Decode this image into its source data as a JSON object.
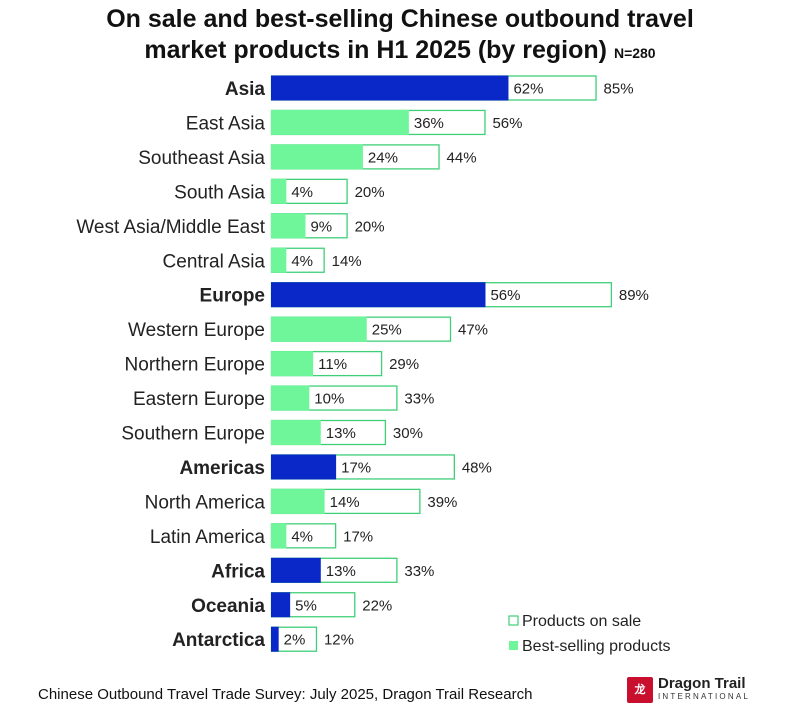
{
  "chart_data": {
    "type": "bar",
    "title_line1": "On sale and best-selling Chinese outbound travel",
    "title_line2": "market products in H1 2025 (by region)",
    "sample_note": "N=280",
    "series": [
      {
        "name": "Products on sale",
        "style": "outline"
      },
      {
        "name": "Best-selling products",
        "style": "filled"
      }
    ],
    "categories": [
      {
        "label": "Asia",
        "bold": true,
        "on_sale": 85,
        "best_selling": 62
      },
      {
        "label": "East Asia",
        "bold": false,
        "on_sale": 56,
        "best_selling": 36
      },
      {
        "label": "Southeast Asia",
        "bold": false,
        "on_sale": 44,
        "best_selling": 24
      },
      {
        "label": "South Asia",
        "bold": false,
        "on_sale": 20,
        "best_selling": 4
      },
      {
        "label": "West Asia/Middle East",
        "bold": false,
        "on_sale": 20,
        "best_selling": 9
      },
      {
        "label": "Central Asia",
        "bold": false,
        "on_sale": 14,
        "best_selling": 4
      },
      {
        "label": "Europe",
        "bold": true,
        "on_sale": 89,
        "best_selling": 56
      },
      {
        "label": "Western Europe",
        "bold": false,
        "on_sale": 47,
        "best_selling": 25
      },
      {
        "label": "Northern Europe",
        "bold": false,
        "on_sale": 29,
        "best_selling": 11
      },
      {
        "label": "Eastern Europe",
        "bold": false,
        "on_sale": 33,
        "best_selling": 10
      },
      {
        "label": "Southern Europe",
        "bold": false,
        "on_sale": 30,
        "best_selling": 13
      },
      {
        "label": "Americas",
        "bold": true,
        "on_sale": 48,
        "best_selling": 17
      },
      {
        "label": "North America",
        "bold": false,
        "on_sale": 39,
        "best_selling": 14
      },
      {
        "label": "Latin America",
        "bold": false,
        "on_sale": 17,
        "best_selling": 4
      },
      {
        "label": "Africa",
        "bold": true,
        "on_sale": 33,
        "best_selling": 13
      },
      {
        "label": "Oceania",
        "bold": true,
        "on_sale": 22,
        "best_selling": 5
      },
      {
        "label": "Antarctica",
        "bold": true,
        "on_sale": 12,
        "best_selling": 2
      }
    ],
    "value_suffix": "%",
    "xlim": [
      0,
      100
    ],
    "legend_position": "bottom-right"
  },
  "colors": {
    "region_fill": "#0a28c8",
    "subregion_fill": "#6ff59a",
    "outline": "#3fcf78",
    "text": "#222222"
  },
  "footer": {
    "source": "Chinese Outbound Travel Trade Survey: July 2025, Dragon Trail Research"
  },
  "logo": {
    "mark_text": "龙",
    "name": "Dragon Trail",
    "sub": "INTERNATIONAL"
  }
}
